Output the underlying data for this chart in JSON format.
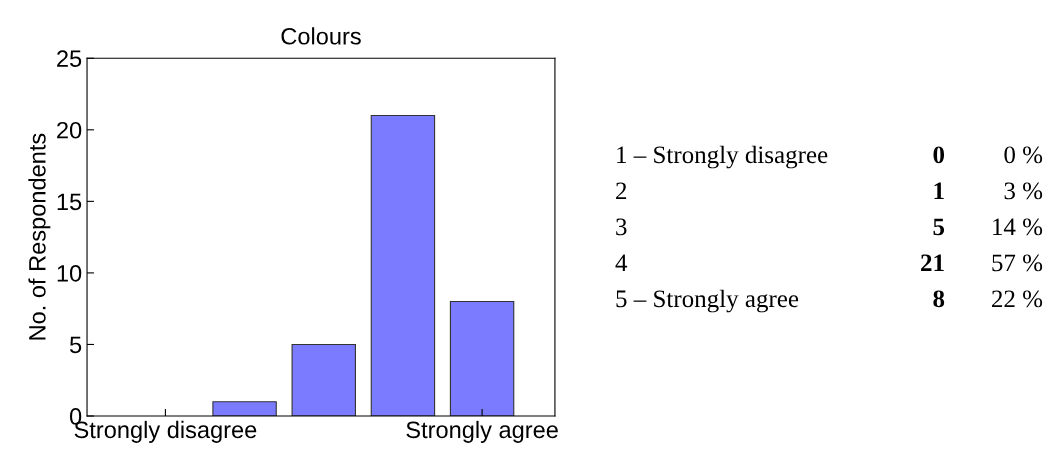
{
  "chart_data": {
    "type": "bar",
    "title": "Colours",
    "ylabel": "No. of Respondents",
    "categories": [
      "Strongly disagree",
      null,
      null,
      null,
      "Strongly agree"
    ],
    "values": [
      0,
      1,
      5,
      21,
      8
    ],
    "color": "#7b7bff",
    "ylim": [
      0,
      25
    ],
    "yticks": [
      0,
      5,
      10,
      15,
      20,
      25
    ],
    "grid": false,
    "annotations": [
      "1 – Strongly disagree",
      "0",
      "0 %",
      "2",
      "1",
      "3 %",
      "3",
      "5",
      "14 %",
      "4",
      "21",
      "57 %",
      "5 – Strongly agree",
      "8",
      "22 %"
    ]
  }
}
